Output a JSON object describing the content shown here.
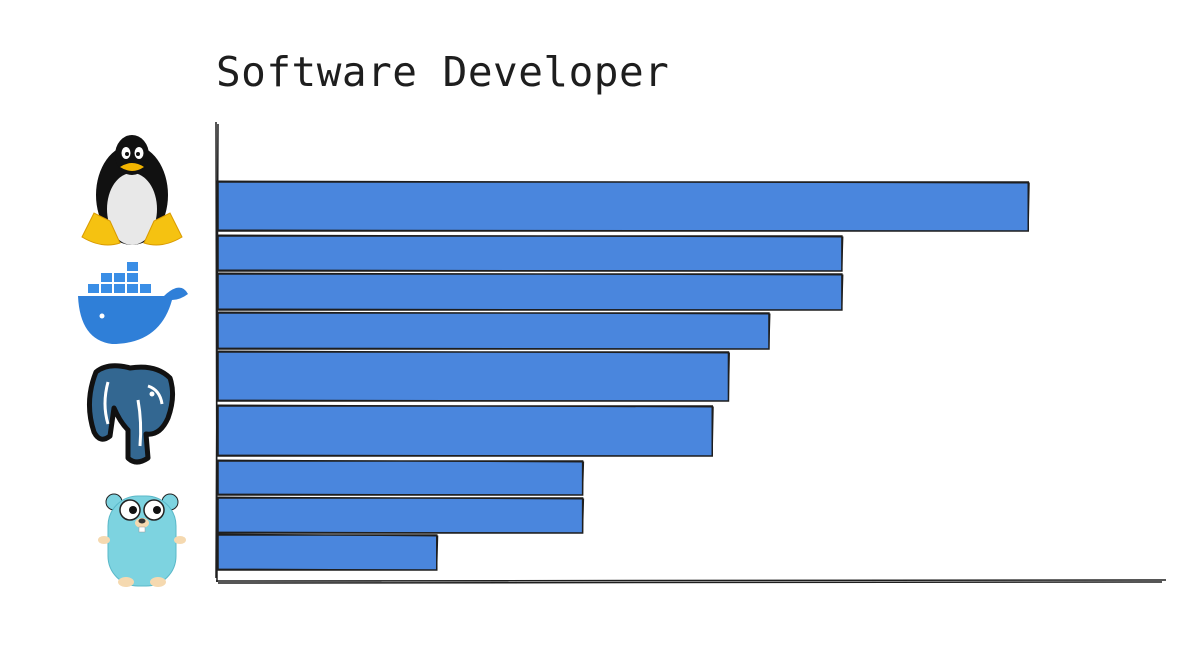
{
  "chart_data": {
    "type": "bar",
    "orientation": "horizontal",
    "title": "Software Developer",
    "xlabel": "",
    "ylabel": "",
    "values": [
      100,
      77,
      77,
      68,
      63,
      61,
      45,
      45,
      27
    ],
    "xlim": [
      0,
      117
    ],
    "bar_color": "#4a86dd",
    "grid": false,
    "legend": "none",
    "icons": [
      "linux-tux",
      "docker-whale",
      "postgresql-elephant",
      "go-gopher"
    ]
  }
}
